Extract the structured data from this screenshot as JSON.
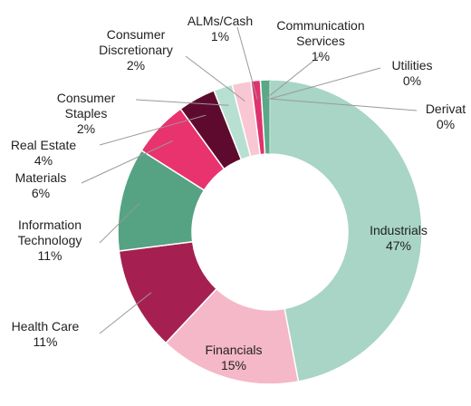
{
  "chart_data": {
    "type": "donut",
    "categories": [
      "Industrials",
      "Financials",
      "Health Care",
      "Information Technology",
      "Materials",
      "Real Estate",
      "Consumer Staples",
      "Consumer Discretionary",
      "ALMs/Cash",
      "Communication Services",
      "Utilities",
      "Derivat"
    ],
    "values": [
      47,
      15,
      11,
      11,
      6,
      4,
      2,
      2,
      1,
      1,
      0,
      0
    ],
    "value_labels": [
      "47%",
      "15%",
      "11%",
      "11%",
      "6%",
      "4%",
      "2%",
      "2%",
      "1%",
      "1%",
      "0%",
      "0%"
    ],
    "colors": [
      "#a8d5c5",
      "#f5b8c8",
      "#a52050",
      "#55a383",
      "#e8336e",
      "#5e0a2e",
      "#b8e0d2",
      "#f8c7d3",
      "#e0336e",
      "#5aa888",
      "#cfe9df",
      "#8fc4b0"
    ]
  }
}
